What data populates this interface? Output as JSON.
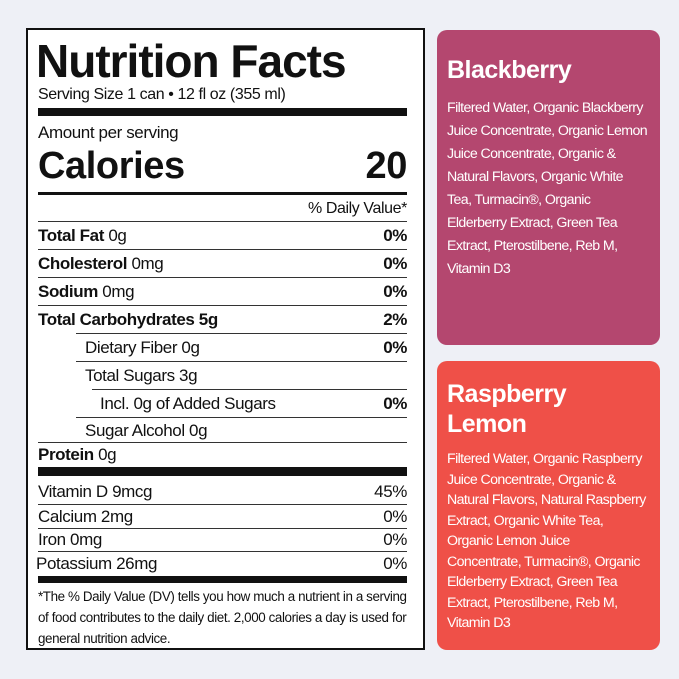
{
  "label": {
    "title": "Nutrition Facts",
    "serving": "Serving Size 1 can • 12 fl oz (355 ml)",
    "amount": "Amount per serving",
    "calories_label": "Calories",
    "calories_value": "20",
    "dv_header": "% Daily Value*",
    "nutrients": [
      {
        "name": "Total Fat",
        "amount": "0g",
        "dv": "0%"
      },
      {
        "name": "Cholesterol",
        "amount": "0mg",
        "dv": "0%"
      },
      {
        "name": "Sodium",
        "amount": "0mg",
        "dv": "0%"
      },
      {
        "name": "Total Carbohydrates",
        "amount": "5g",
        "dv": "2%"
      },
      {
        "name": "Dietary Fiber 0g",
        "dv": "0%"
      },
      {
        "name": "Total Sugars 3g",
        "dv": ""
      },
      {
        "name": "Incl. 0g of Added Sugars",
        "dv": "0%"
      },
      {
        "name": "Sugar Alcohol 0g",
        "dv": ""
      },
      {
        "name": "Protein",
        "amount": "0g",
        "dv": ""
      }
    ],
    "vitamins": [
      {
        "name": "Vitamin D 9mcg",
        "dv": "45%"
      },
      {
        "name": "Calcium 2mg",
        "dv": "0%"
      },
      {
        "name": "Iron 0mg",
        "dv": "0%"
      },
      {
        "name": "Potassium 26mg",
        "dv": "0%"
      }
    ],
    "footnote": "*The % Daily Value (DV) tells you how much a nutrient in a serving of food contributes to the daily diet. 2,000 calories a day is used for general nutrition advice."
  },
  "flavors": [
    {
      "name": "Blackberry",
      "color": "#b4476f",
      "ingredients": "Filtered Water, Organic Blackberry Juice Concentrate, Organic Lemon Juice Concentrate, Organic & Natural Flavors, Organic White Tea, Turmacin®, Organic Elderberry Extract, Green Tea Extract, Pterostilbene, Reb M, Vitamin D3"
    },
    {
      "name": "Raspberry Lemon",
      "color": "#ef5048",
      "ingredients": "Filtered Water, Organic Raspberry Juice Concentrate, Organic & Natural Flavors, Natural Raspberry Extract, Organic White Tea, Organic Lemon Juice Concentrate, Turmacin®, Organic Elderberry Extract, Green Tea Extract, Pterostilbene, Reb M, Vitamin D3"
    }
  ]
}
